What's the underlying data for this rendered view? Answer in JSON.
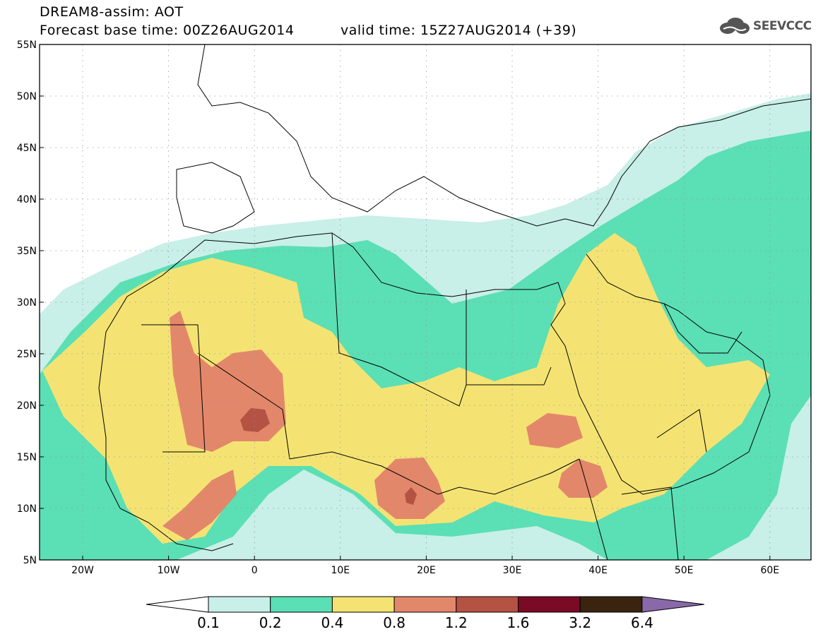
{
  "header": {
    "line1": "DREAM8-assim: AOT",
    "line2_base": "Forecast base time: 00Z26AUG2014",
    "line2_valid": "valid time: 15Z27AUG2014 (+39)"
  },
  "logo": {
    "text": "SEEVCCC",
    "icon": "cloud-icon"
  },
  "map": {
    "lat_labels": [
      "55N",
      "50N",
      "45N",
      "40N",
      "35N",
      "30N",
      "25N",
      "20N",
      "15N",
      "10N",
      "5N"
    ],
    "lon_labels": [
      "20W",
      "10W",
      "0",
      "10E",
      "20E",
      "30E",
      "40E",
      "50E",
      "60E"
    ]
  },
  "colorbar": {
    "colors": [
      "#c8efe8",
      "#5bdfb4",
      "#f4e373",
      "#e3876a",
      "#b45244",
      "#7a0a25",
      "#3a2410",
      "#8a69a8"
    ],
    "labels": [
      "0.1",
      "0.2",
      "0.4",
      "0.8",
      "1.2",
      "1.6",
      "3.2",
      "6.4"
    ]
  }
}
